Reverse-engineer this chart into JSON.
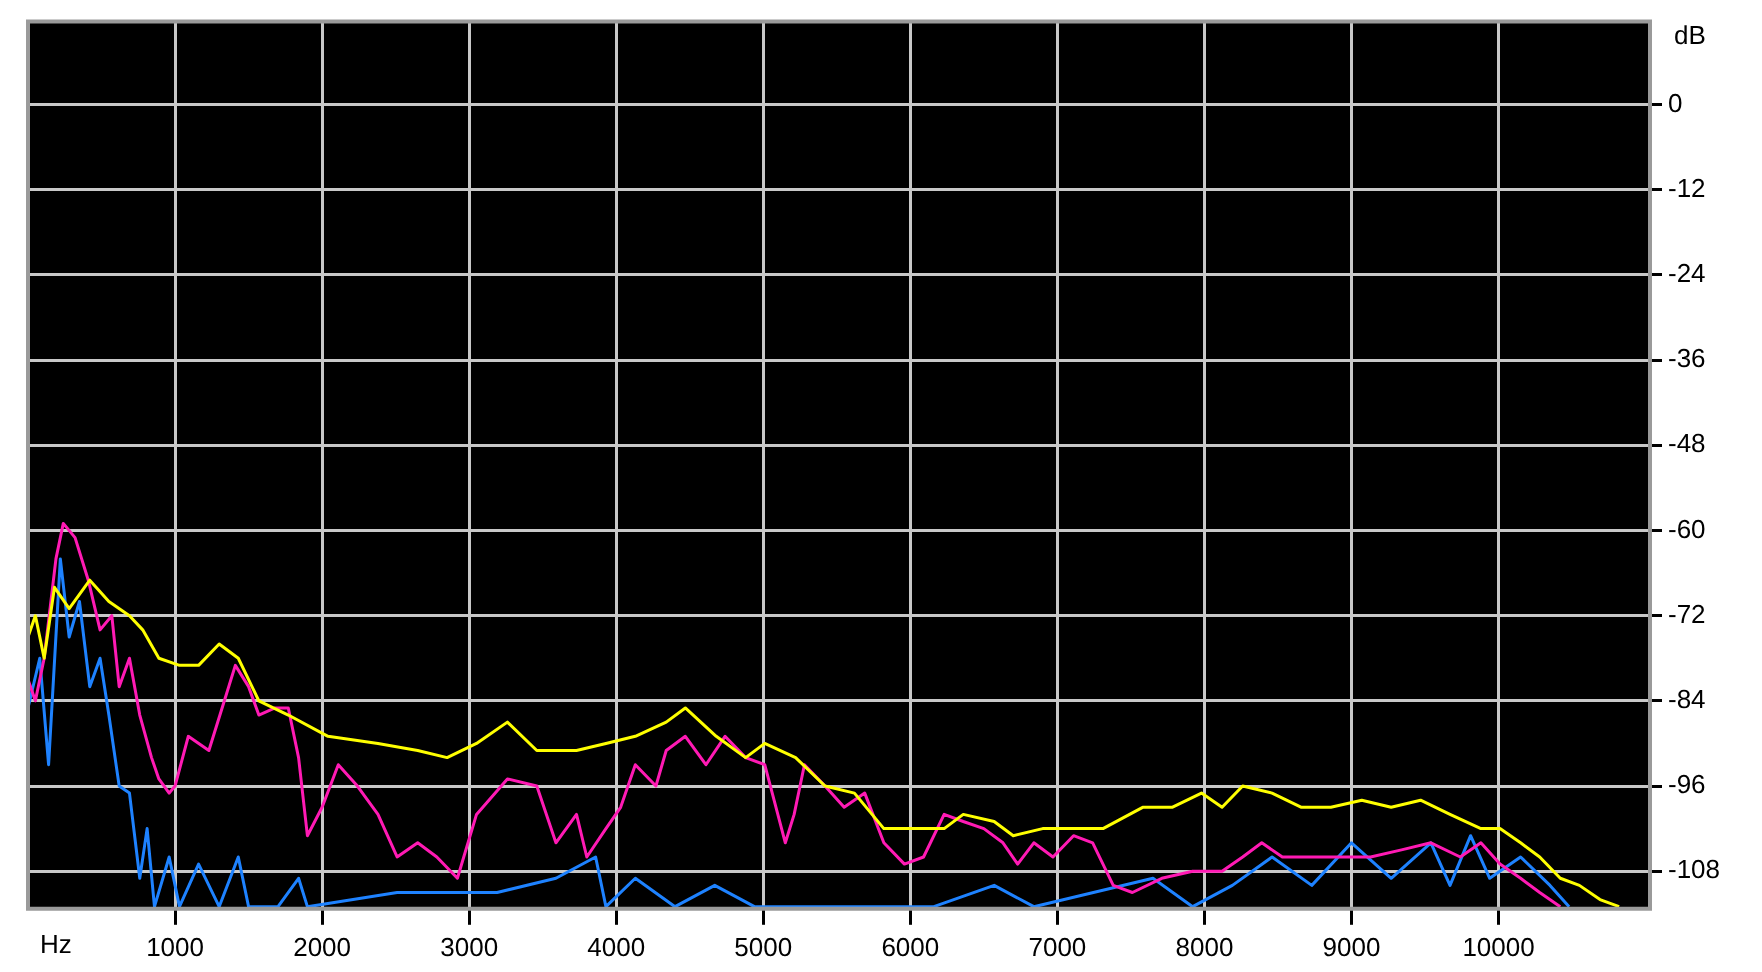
{
  "chart_data": {
    "type": "line",
    "xlabel": "Hz",
    "ylabel": "dB",
    "xlim": [
      0,
      11030
    ],
    "ylim": [
      -113.3,
      11.7
    ],
    "xticks": [
      1000,
      2000,
      3000,
      4000,
      5000,
      6000,
      7000,
      8000,
      9000,
      10000
    ],
    "yticks": [
      0,
      -12,
      -24,
      -36,
      -48,
      -60,
      -72,
      -84,
      -96,
      -108
    ],
    "grid": true,
    "legend": false,
    "marker": "none",
    "line_style": "solid",
    "series": [
      {
        "color": "#ffff00",
        "x": [
          0,
          50,
          110,
          180,
          280,
          420,
          550,
          690,
          780,
          890,
          1030,
          1160,
          1300,
          1430,
          1570,
          1770,
          2040,
          2380,
          2650,
          2850,
          3050,
          3260,
          3460,
          3730,
          3930,
          4130,
          4340,
          4470,
          4680,
          4880,
          5010,
          5220,
          5420,
          5620,
          5820,
          6030,
          6230,
          6360,
          6570,
          6700,
          6900,
          7110,
          7310,
          7580,
          7780,
          7980,
          8120,
          8260,
          8460,
          8660,
          8860,
          9070,
          9270,
          9470,
          9670,
          9880,
          10010,
          10150,
          10280,
          10420,
          10550,
          10690,
          10820
        ],
        "values": [
          -75,
          -72,
          -78,
          -68,
          -71,
          -67,
          -70,
          -72,
          -74,
          -78,
          -79,
          -79,
          -76,
          -78,
          -84,
          -86,
          -89,
          -90,
          -91,
          -92,
          -90,
          -87,
          -91,
          -91,
          -90,
          -89,
          -87,
          -85,
          -89,
          -92,
          -90,
          -92,
          -96,
          -97,
          -102,
          -102,
          -102,
          -100,
          -101,
          -103,
          -102,
          -102,
          -102,
          -99,
          -99,
          -97,
          -99,
          -96,
          -97,
          -99,
          -99,
          -98,
          -99,
          -98,
          -100,
          -102,
          -102,
          -104,
          -106,
          -109,
          -110,
          -112,
          -113
        ]
      },
      {
        "color": "#ff1ab4",
        "x": [
          0,
          50,
          110,
          190,
          240,
          320,
          410,
          490,
          570,
          620,
          690,
          760,
          840,
          890,
          960,
          1000,
          1090,
          1230,
          1320,
          1410,
          1500,
          1570,
          1680,
          1770,
          1840,
          1900,
          2000,
          2110,
          2240,
          2380,
          2510,
          2650,
          2780,
          2920,
          3050,
          3260,
          3460,
          3590,
          3730,
          3800,
          3930,
          4030,
          4130,
          4270,
          4340,
          4470,
          4610,
          4740,
          4880,
          5010,
          5150,
          5210,
          5280,
          5420,
          5550,
          5690,
          5820,
          5960,
          6090,
          6230,
          6360,
          6500,
          6630,
          6730,
          6840,
          6970,
          7110,
          7240,
          7380,
          7510,
          7710,
          7920,
          8120,
          8260,
          8390,
          8530,
          8730,
          8930,
          9130,
          9340,
          9540,
          9740,
          9880,
          10010,
          10150,
          10280,
          10420
        ],
        "values": [
          -81,
          -84,
          -78,
          -64,
          -59,
          -61,
          -67,
          -74,
          -72,
          -82,
          -78,
          -86,
          -92,
          -95,
          -97,
          -96,
          -89,
          -91,
          -85,
          -79,
          -82,
          -86,
          -85,
          -85,
          -92,
          -103,
          -99,
          -93,
          -96,
          -100,
          -106,
          -104,
          -106,
          -109,
          -100,
          -95,
          -96,
          -104,
          -100,
          -106,
          -102,
          -99,
          -93,
          -96,
          -91,
          -89,
          -93,
          -89,
          -92,
          -93,
          -104,
          -100,
          -93,
          -96,
          -99,
          -97,
          -104,
          -107,
          -106,
          -100,
          -101,
          -102,
          -104,
          -107,
          -104,
          -106,
          -103,
          -104,
          -110,
          -111,
          -109,
          -108,
          -108,
          -106,
          -104,
          -106,
          -106,
          -106,
          -106,
          -105,
          -104,
          -106,
          -104,
          -107,
          -109,
          -111,
          -113
        ]
      },
      {
        "color": "#1e82ff",
        "x": [
          0,
          80,
          140,
          220,
          280,
          350,
          420,
          490,
          550,
          620,
          690,
          760,
          810,
          860,
          960,
          1030,
          1160,
          1300,
          1430,
          1500,
          1700,
          1840,
          1900,
          2510,
          3190,
          3590,
          3860,
          3930,
          4130,
          4400,
          4670,
          4940,
          6160,
          6570,
          6840,
          7650,
          7920,
          8190,
          8460,
          8730,
          9000,
          9270,
          9540,
          9670,
          9810,
          9940,
          10150,
          10350,
          10480
        ],
        "values": [
          -85,
          -78,
          -93,
          -64,
          -75,
          -70,
          -82,
          -78,
          -86,
          -96,
          -97,
          -109,
          -102,
          -113,
          -106,
          -113,
          -107,
          -113,
          -106,
          -113,
          -113,
          -109,
          -113,
          -111,
          -111,
          -109,
          -106,
          -113,
          -109,
          -113,
          -110,
          -113,
          -113,
          -110,
          -113,
          -109,
          -113,
          -110,
          -106,
          -110,
          -104,
          -109,
          -104,
          -110,
          -103,
          -109,
          -106,
          -110,
          -113
        ]
      }
    ]
  }
}
